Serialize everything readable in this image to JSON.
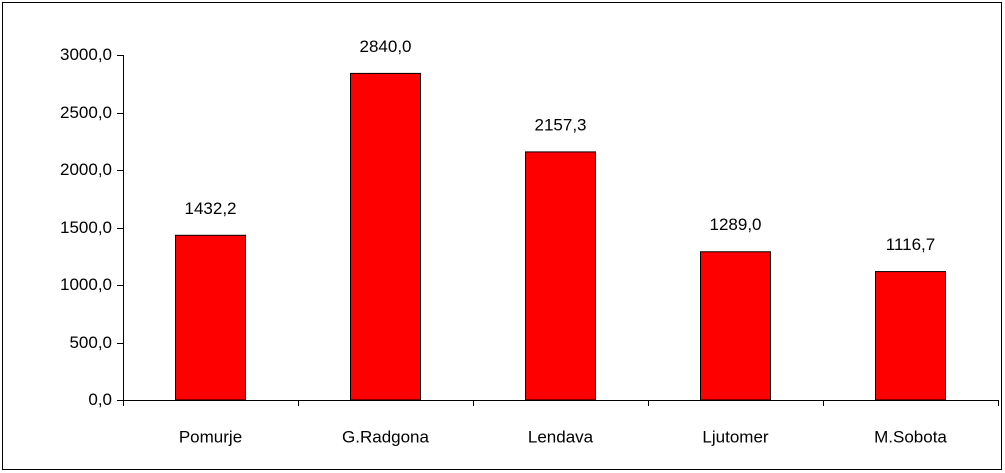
{
  "chart_data": {
    "type": "bar",
    "categories": [
      "Pomurje",
      "G.Radgona",
      "Lendava",
      "Ljutomer",
      "M.Sobota"
    ],
    "values": [
      1432.2,
      2840.0,
      2157.3,
      1289.0,
      1116.7
    ],
    "value_labels": [
      "1432,2",
      "2840,0",
      "2157,3",
      "1289,0",
      "1116,7"
    ],
    "color": "#ff0000",
    "ylim": [
      0,
      3000
    ],
    "yticks": [
      {
        "value": 0,
        "label": "0,0"
      },
      {
        "value": 500,
        "label": "500,0"
      },
      {
        "value": 1000,
        "label": "1000,0"
      },
      {
        "value": 1500,
        "label": "1500,0"
      },
      {
        "value": 2000,
        "label": "2000,0"
      },
      {
        "value": 2500,
        "label": "2500,0"
      },
      {
        "value": 3000,
        "label": "3000,0"
      }
    ],
    "grid": false
  }
}
